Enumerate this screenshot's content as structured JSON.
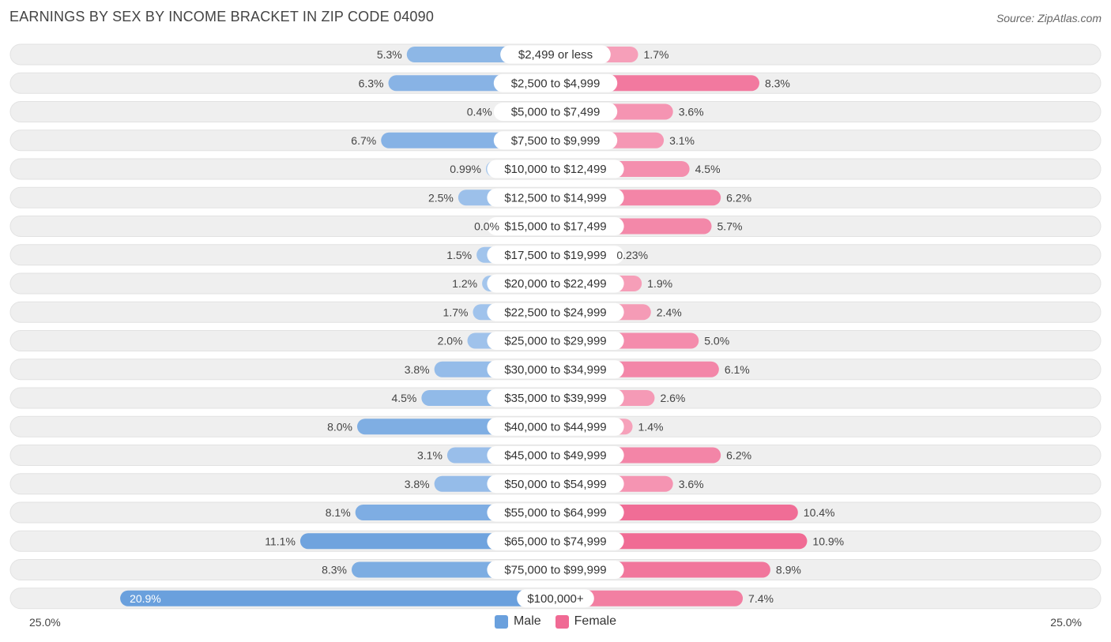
{
  "header": {
    "title": "EARNINGS BY SEX BY INCOME BRACKET IN ZIP CODE 04090",
    "source": "Source: ZipAtlas.com"
  },
  "legend": {
    "male": "Male",
    "female": "Female"
  },
  "axis": {
    "left_label": "25.0%",
    "right_label": "25.0%"
  },
  "colors": {
    "male_light": "#a9c9ee",
    "male_dark": "#6aa0dd",
    "female_light": "#f7a9c0",
    "female_dark": "#f06a94",
    "row_bg": "#efefef"
  },
  "chart_data": {
    "type": "bar",
    "orientation": "horizontal-diverging",
    "title": "EARNINGS BY SEX BY INCOME BRACKET IN ZIP CODE 04090",
    "xlim": [
      -25.0,
      25.0
    ],
    "categories": [
      "$2,499 or less",
      "$2,500 to $4,999",
      "$5,000 to $7,499",
      "$7,500 to $9,999",
      "$10,000 to $12,499",
      "$12,500 to $14,999",
      "$15,000 to $17,499",
      "$17,500 to $19,999",
      "$20,000 to $22,499",
      "$22,500 to $24,999",
      "$25,000 to $29,999",
      "$30,000 to $34,999",
      "$35,000 to $39,999",
      "$40,000 to $44,999",
      "$45,000 to $49,999",
      "$50,000 to $54,999",
      "$55,000 to $64,999",
      "$65,000 to $74,999",
      "$75,000 to $99,999",
      "$100,000+"
    ],
    "series": [
      {
        "name": "Male",
        "values": [
          5.3,
          6.3,
          0.4,
          6.7,
          0.99,
          2.5,
          0.0,
          1.5,
          1.2,
          1.7,
          2.0,
          3.8,
          4.5,
          8.0,
          3.1,
          3.8,
          8.1,
          11.1,
          8.3,
          20.9
        ],
        "labels": [
          "5.3%",
          "6.3%",
          "0.4%",
          "6.7%",
          "0.99%",
          "2.5%",
          "0.0%",
          "1.5%",
          "1.2%",
          "1.7%",
          "2.0%",
          "3.8%",
          "4.5%",
          "8.0%",
          "3.1%",
          "3.8%",
          "8.1%",
          "11.1%",
          "8.3%",
          "20.9%"
        ]
      },
      {
        "name": "Female",
        "values": [
          1.7,
          8.3,
          3.6,
          3.1,
          4.5,
          6.2,
          5.7,
          0.23,
          1.9,
          2.4,
          5.0,
          6.1,
          2.6,
          1.4,
          6.2,
          3.6,
          10.4,
          10.9,
          8.9,
          7.4
        ],
        "labels": [
          "1.7%",
          "8.3%",
          "3.6%",
          "3.1%",
          "4.5%",
          "6.2%",
          "5.7%",
          "0.23%",
          "1.9%",
          "2.4%",
          "5.0%",
          "6.1%",
          "2.6%",
          "1.4%",
          "6.2%",
          "3.6%",
          "10.4%",
          "10.9%",
          "8.9%",
          "7.4%"
        ]
      }
    ]
  }
}
